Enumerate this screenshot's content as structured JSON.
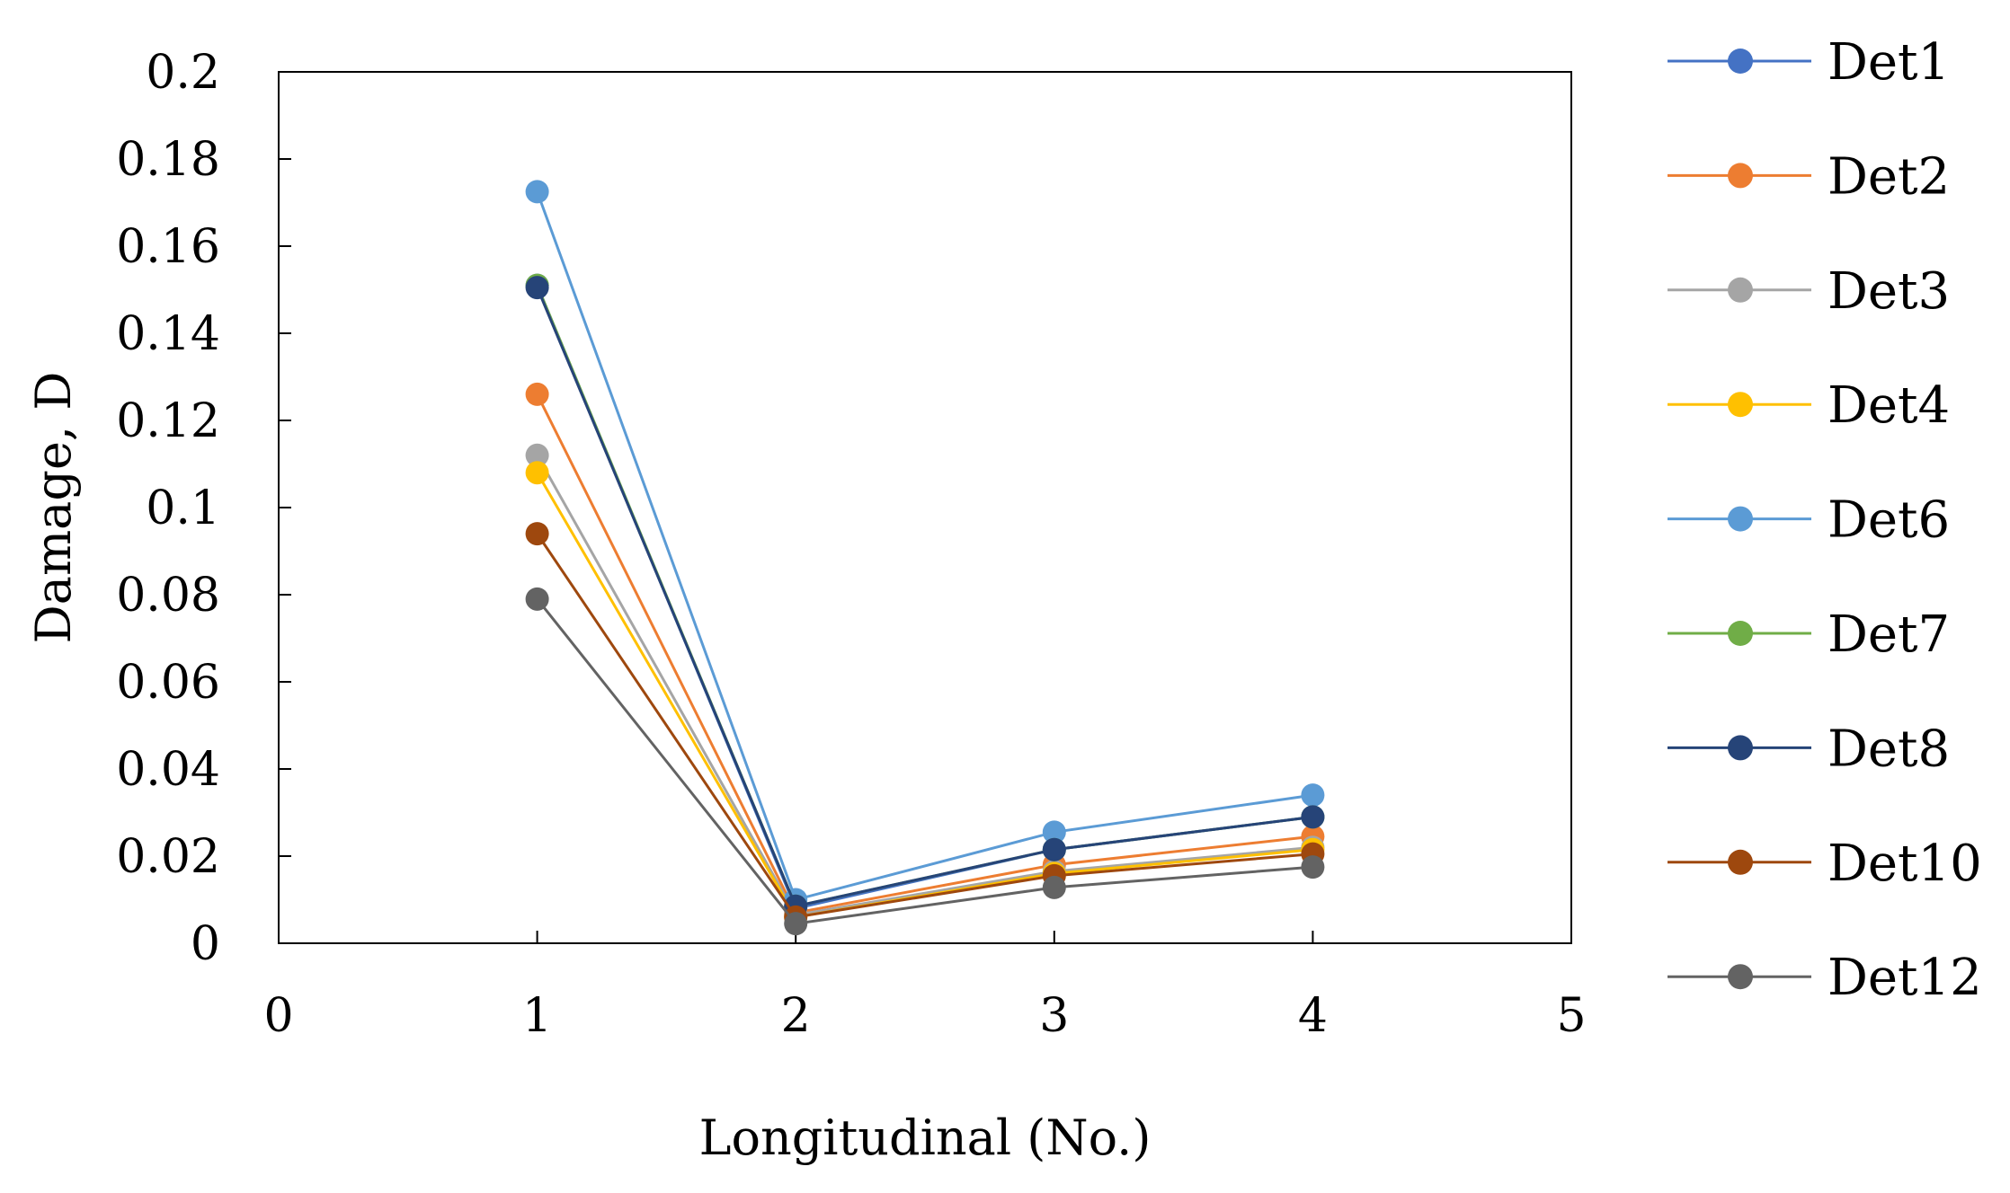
{
  "chart_data": {
    "type": "line",
    "title": "",
    "xlabel": "Longitudinal (No.)",
    "ylabel": "Damage, D",
    "xlim": [
      0,
      5
    ],
    "ylim": [
      0,
      0.2
    ],
    "x_ticks": [
      "0",
      "1",
      "2",
      "3",
      "4",
      "5"
    ],
    "y_ticks": [
      "0",
      "0.02",
      "0.04",
      "0.06",
      "0.08",
      "0.1",
      "0.12",
      "0.14",
      "0.16",
      "0.18",
      "0.2"
    ],
    "grid": false,
    "legend_position": "right",
    "x": [
      1,
      2,
      3,
      4
    ],
    "series": [
      {
        "name": "Det1",
        "color": "#4472C4",
        "values": [
          0.151,
          0.008,
          0.0215,
          0.029
        ]
      },
      {
        "name": "Det2",
        "color": "#ED7D31",
        "values": [
          0.126,
          0.007,
          0.018,
          0.0245
        ]
      },
      {
        "name": "Det3",
        "color": "#A5A5A5",
        "values": [
          0.112,
          0.0065,
          0.0165,
          0.022
        ]
      },
      {
        "name": "Det4",
        "color": "#FFC000",
        "values": [
          0.108,
          0.006,
          0.016,
          0.0215
        ]
      },
      {
        "name": "Det6",
        "color": "#5B9BD5",
        "values": [
          0.1725,
          0.01,
          0.0255,
          0.034
        ]
      },
      {
        "name": "Det7",
        "color": "#70AD47",
        "values": [
          0.151,
          0.0085,
          0.0215,
          0.029
        ]
      },
      {
        "name": "Det8",
        "color": "#264478",
        "values": [
          0.1505,
          0.0085,
          0.0215,
          0.029
        ]
      },
      {
        "name": "Det10",
        "color": "#9E480E",
        "values": [
          0.094,
          0.006,
          0.0155,
          0.0205
        ]
      },
      {
        "name": "Det12",
        "color": "#636363",
        "values": [
          0.079,
          0.0045,
          0.0128,
          0.0175
        ]
      }
    ]
  }
}
